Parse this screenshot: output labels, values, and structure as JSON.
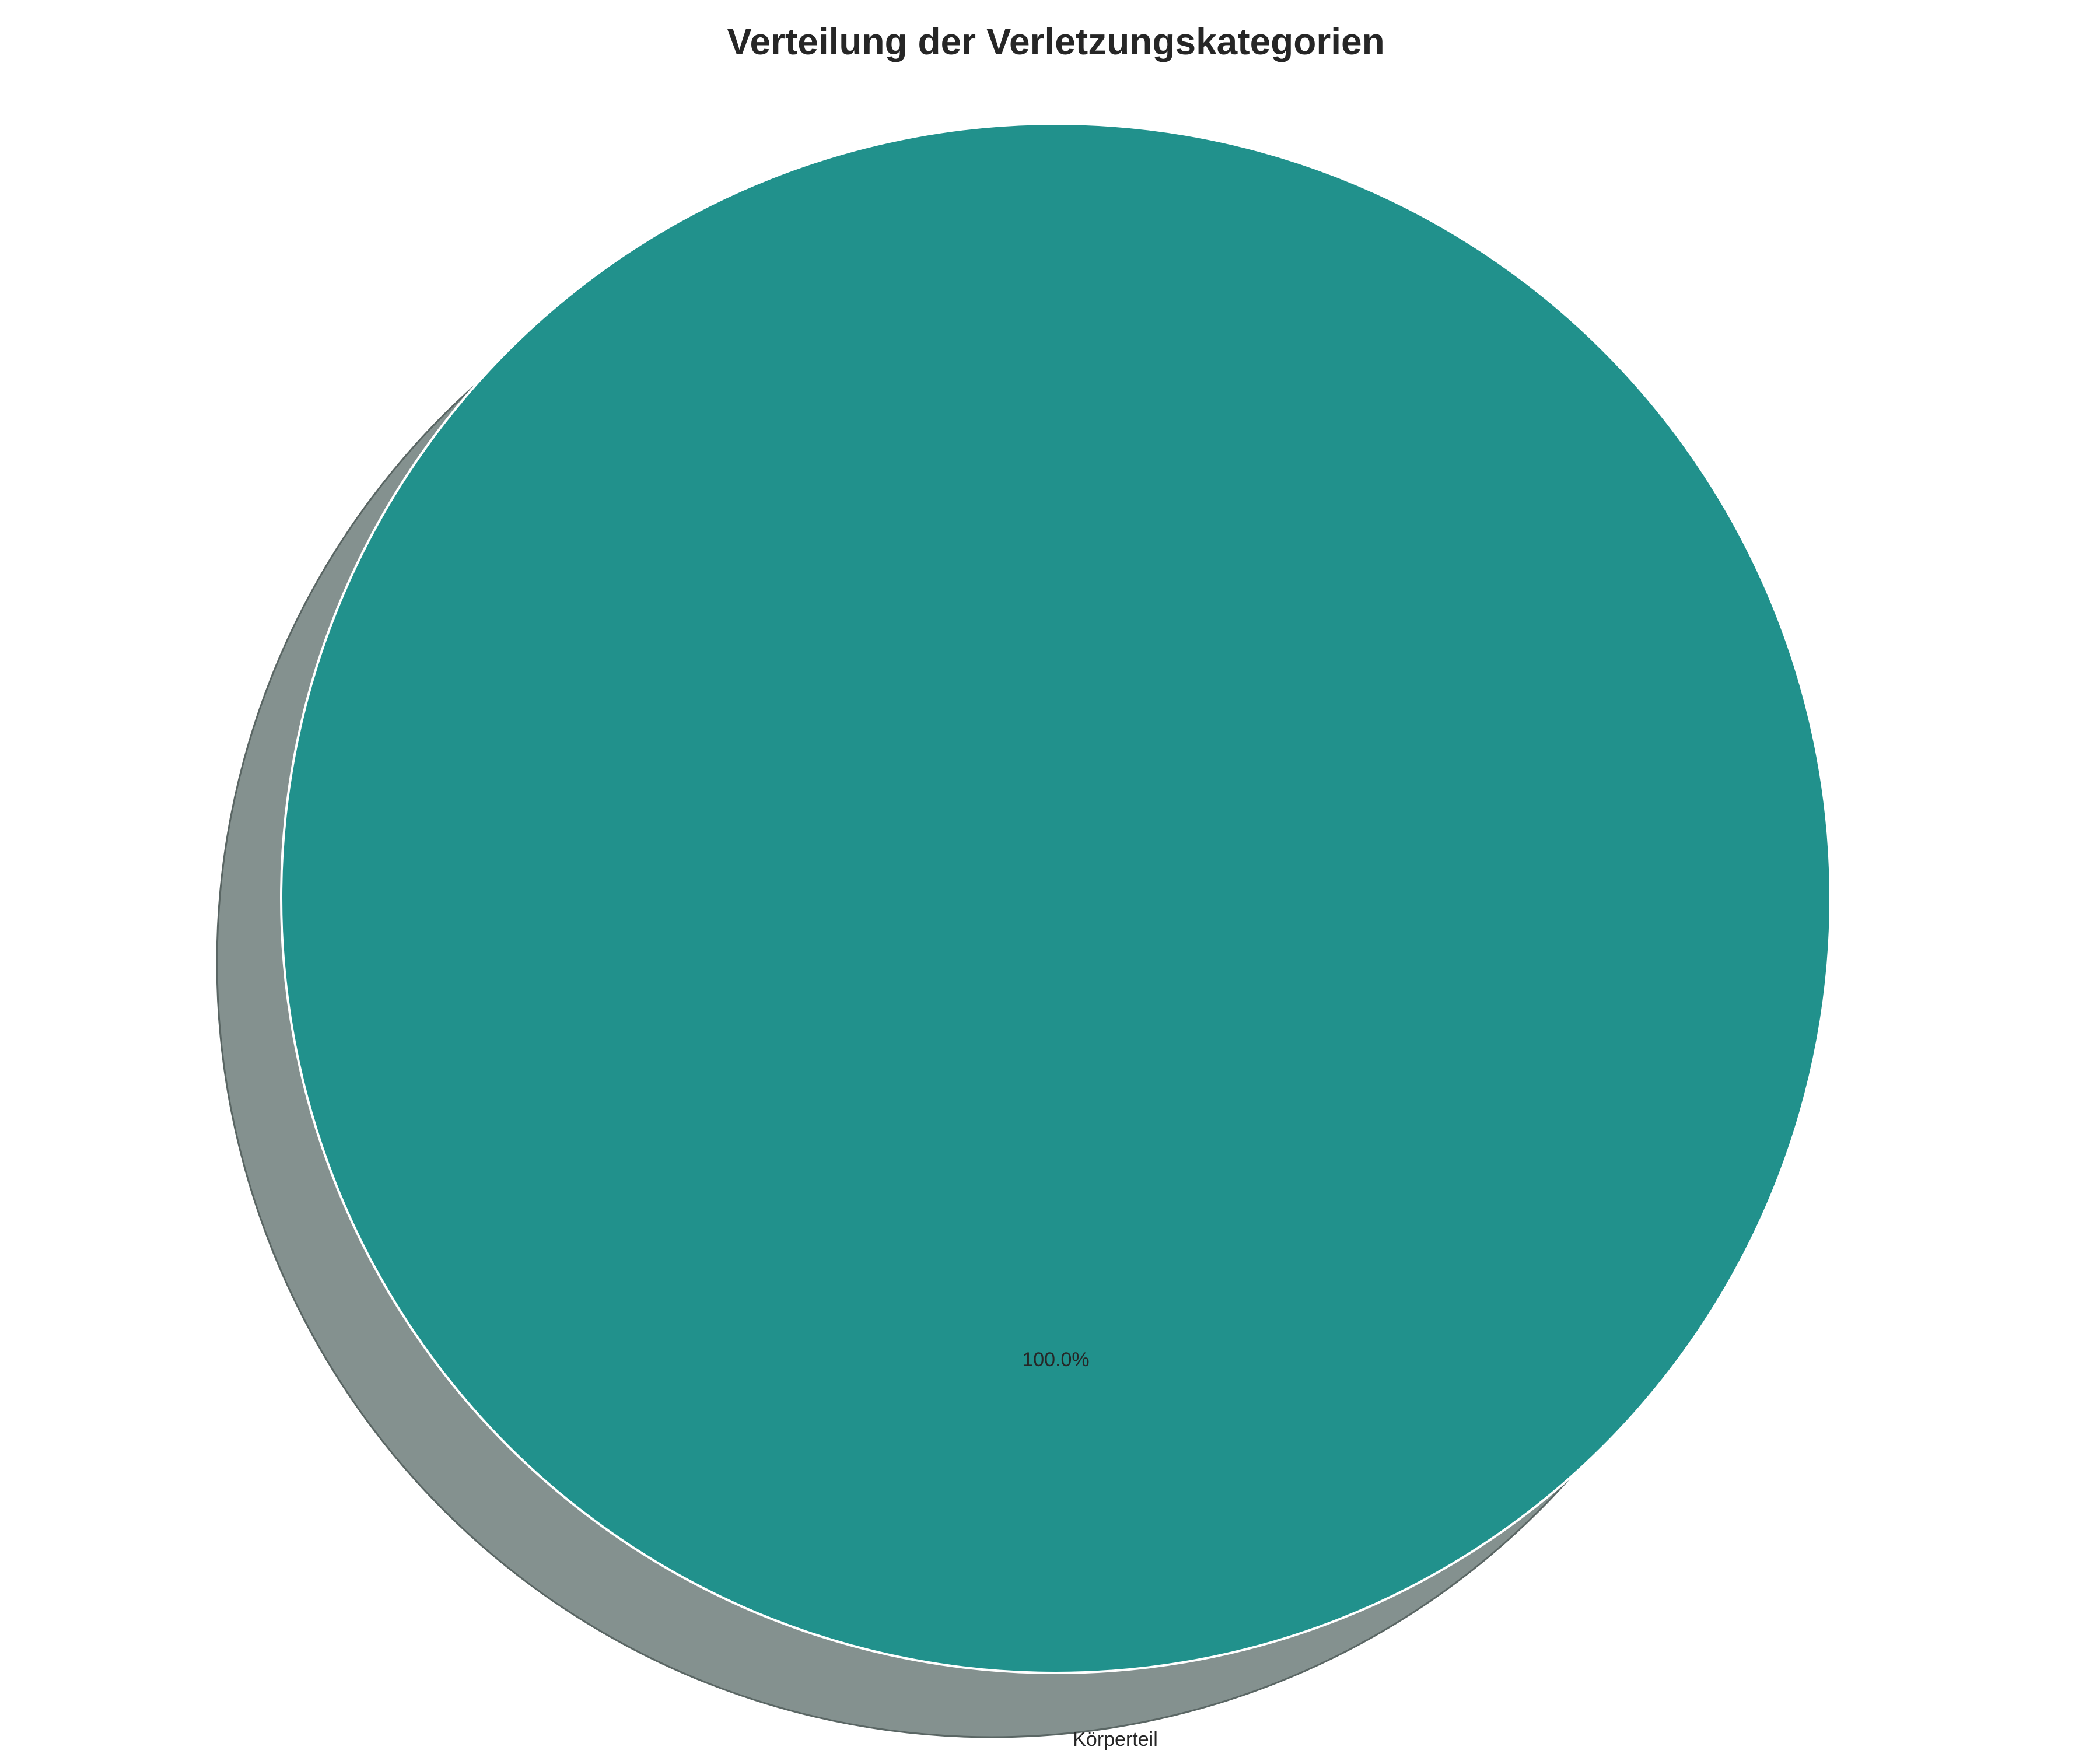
{
  "chart_data": {
    "type": "pie",
    "title": "Verteilung der Verletzungskategorien",
    "categories": [
      "Körperteil"
    ],
    "values": [
      100
    ],
    "percent_labels": [
      "100.0%"
    ],
    "shadow": true,
    "colors": {
      "slices": [
        "#21918c"
      ],
      "shadow": "#84918f",
      "shadow_edge": "#5a6664",
      "slice_edge": "#ffffff",
      "text": "#262626",
      "background": "#ffffff"
    }
  }
}
